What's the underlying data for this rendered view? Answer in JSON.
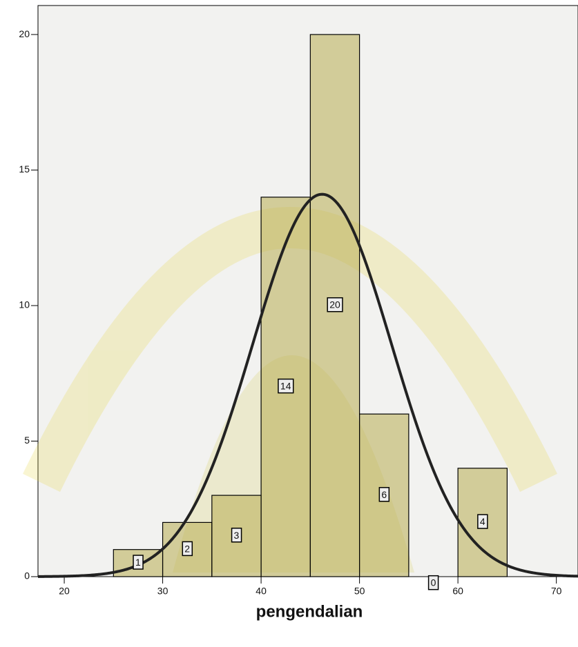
{
  "chart_data": {
    "type": "histogram",
    "x_label": "pengendalian",
    "bins": [
      25,
      30,
      35,
      40,
      45,
      50,
      55,
      60,
      65
    ],
    "values": [
      1,
      2,
      3,
      14,
      20,
      6,
      0,
      4
    ],
    "color": "#b8ad52",
    "curve": {
      "mean": 46.2,
      "sd": 7.07
    },
    "xlim": [
      17.33,
      72.2
    ],
    "xticks": [
      20,
      30,
      40,
      50,
      60,
      70
    ],
    "ylim": [
      0,
      21.07
    ],
    "yticks": [
      0,
      5,
      10,
      15,
      20
    ]
  }
}
